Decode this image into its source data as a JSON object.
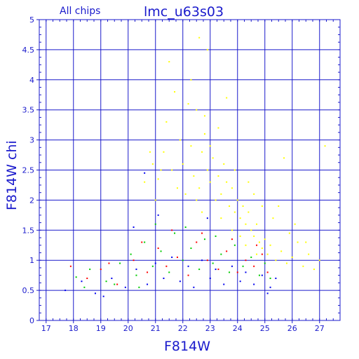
{
  "chart_data": {
    "type": "scatter",
    "header_left": "All chips",
    "title": "lmc_u63s03",
    "xlabel": "F814W",
    "ylabel": "F814W chi",
    "xlim": [
      16.75,
      27.75
    ],
    "ylim": [
      0,
      5
    ],
    "x_ticks": [
      "17",
      "18",
      "19",
      "20",
      "21",
      "22",
      "23",
      "24",
      "25",
      "26",
      "27"
    ],
    "y_ticks": [
      "0",
      "0.5",
      "1",
      "1.5",
      "2",
      "2.5",
      "3",
      "3.5",
      "4",
      "4.5",
      "5"
    ],
    "grid": true,
    "series": [
      {
        "color": "#ffff00",
        "points": [
          [
            20.9,
            2.6
          ],
          [
            21.1,
            2.35
          ],
          [
            21.3,
            2.8
          ],
          [
            21.4,
            3.3
          ],
          [
            21.6,
            2.5
          ],
          [
            21.8,
            2.2
          ],
          [
            21.9,
            3.0
          ],
          [
            22.0,
            2.6
          ],
          [
            22.1,
            2.1
          ],
          [
            22.2,
            3.6
          ],
          [
            22.3,
            2.9
          ],
          [
            22.4,
            2.4
          ],
          [
            22.5,
            3.5
          ],
          [
            22.6,
            2.2
          ],
          [
            22.7,
            2.8
          ],
          [
            22.8,
            3.1
          ],
          [
            22.9,
            2.5
          ],
          [
            23.0,
            2.3
          ],
          [
            23.1,
            2.7
          ],
          [
            23.2,
            2.0
          ],
          [
            23.3,
            2.4
          ],
          [
            23.4,
            2.1
          ],
          [
            23.5,
            2.6
          ],
          [
            23.6,
            2.3
          ],
          [
            23.7,
            1.9
          ],
          [
            23.8,
            2.2
          ],
          [
            23.9,
            1.8
          ],
          [
            24.0,
            2.0
          ],
          [
            24.1,
            1.7
          ],
          [
            24.2,
            1.9
          ],
          [
            24.3,
            1.6
          ],
          [
            24.4,
            1.8
          ],
          [
            24.5,
            1.5
          ],
          [
            24.6,
            1.4
          ],
          [
            24.7,
            1.6
          ],
          [
            24.8,
            1.3
          ],
          [
            24.9,
            1.2
          ],
          [
            25.0,
            1.35
          ],
          [
            25.1,
            1.1
          ],
          [
            25.2,
            1.25
          ],
          [
            25.4,
            1.0
          ],
          [
            25.6,
            1.15
          ],
          [
            25.8,
            0.95
          ],
          [
            26.0,
            1.05
          ],
          [
            26.2,
            1.3
          ],
          [
            26.4,
            0.9
          ],
          [
            26.6,
            1.1
          ],
          [
            26.8,
            0.85
          ],
          [
            27.0,
            1.0
          ],
          [
            27.2,
            2.9
          ],
          [
            22.6,
            4.7
          ],
          [
            22.9,
            4.5
          ],
          [
            22.3,
            4.0
          ],
          [
            21.5,
            4.3
          ],
          [
            23.6,
            3.7
          ],
          [
            21.7,
            3.8
          ],
          [
            22.8,
            3.4
          ],
          [
            23.3,
            3.2
          ],
          [
            20.8,
            2.8
          ],
          [
            21.2,
            2.5
          ],
          [
            23.9,
            2.5
          ],
          [
            24.6,
            2.1
          ],
          [
            24.9,
            1.9
          ],
          [
            25.3,
            1.7
          ],
          [
            25.9,
            1.45
          ],
          [
            26.5,
            1.3
          ],
          [
            22.7,
            1.8
          ],
          [
            23.8,
            1.5
          ],
          [
            24.3,
            1.25
          ],
          [
            24.7,
            1.1
          ],
          [
            24.1,
            1.4
          ],
          [
            23.4,
            1.7
          ],
          [
            22.5,
            2.0
          ],
          [
            25.7,
            2.7
          ],
          [
            26.1,
            1.6
          ],
          [
            25.5,
            1.9
          ],
          [
            24.4,
            2.3
          ],
          [
            23.0,
            2.9
          ],
          [
            21.0,
            2.0
          ],
          [
            20.6,
            2.3
          ]
        ]
      },
      {
        "color": "#00cc00",
        "points": [
          [
            18.1,
            0.72
          ],
          [
            18.6,
            0.85
          ],
          [
            19.2,
            0.65
          ],
          [
            19.7,
            0.95
          ],
          [
            20.1,
            1.1
          ],
          [
            20.3,
            0.75
          ],
          [
            20.6,
            1.3
          ],
          [
            20.9,
            0.9
          ],
          [
            21.2,
            1.15
          ],
          [
            21.5,
            0.8
          ],
          [
            21.7,
            1.45
          ],
          [
            22.0,
            1.0
          ],
          [
            22.3,
            1.2
          ],
          [
            22.6,
            0.85
          ],
          [
            22.8,
            1.35
          ],
          [
            23.1,
            0.95
          ],
          [
            23.4,
            1.1
          ],
          [
            23.7,
            0.8
          ],
          [
            23.9,
            1.25
          ],
          [
            24.2,
            0.9
          ],
          [
            24.5,
            1.05
          ],
          [
            24.8,
            0.75
          ],
          [
            25.0,
            0.95
          ],
          [
            25.2,
            0.7
          ],
          [
            21.0,
            1.6
          ],
          [
            22.1,
            1.55
          ],
          [
            23.2,
            1.4
          ],
          [
            20.4,
            0.55
          ],
          [
            19.5,
            0.6
          ],
          [
            18.4,
            0.55
          ]
        ]
      },
      {
        "color": "#ff0000",
        "points": [
          [
            17.9,
            0.9
          ],
          [
            18.5,
            0.7
          ],
          [
            19.0,
            0.85
          ],
          [
            19.6,
            0.6
          ],
          [
            20.2,
            1.0
          ],
          [
            20.7,
            0.8
          ],
          [
            21.1,
            1.2
          ],
          [
            21.4,
            0.9
          ],
          [
            21.8,
            1.05
          ],
          [
            22.2,
            0.75
          ],
          [
            22.5,
            1.3
          ],
          [
            22.9,
            1.0
          ],
          [
            23.3,
            0.85
          ],
          [
            23.6,
            1.15
          ],
          [
            24.0,
            0.8
          ],
          [
            24.3,
            1.0
          ],
          [
            24.6,
            0.9
          ],
          [
            24.9,
            1.1
          ],
          [
            25.1,
            0.8
          ],
          [
            21.6,
            1.5
          ],
          [
            22.7,
            1.45
          ],
          [
            20.5,
            1.3
          ],
          [
            23.8,
            1.35
          ],
          [
            24.7,
            1.25
          ],
          [
            19.3,
            0.95
          ]
        ]
      },
      {
        "color": "#0000ee",
        "points": [
          [
            17.7,
            0.5
          ],
          [
            18.3,
            0.65
          ],
          [
            18.8,
            0.45
          ],
          [
            19.4,
            0.7
          ],
          [
            19.9,
            0.55
          ],
          [
            20.3,
            0.85
          ],
          [
            20.7,
            0.6
          ],
          [
            21.0,
            0.95
          ],
          [
            21.3,
            0.7
          ],
          [
            21.6,
            1.05
          ],
          [
            21.9,
            0.65
          ],
          [
            22.2,
            0.9
          ],
          [
            22.4,
            0.55
          ],
          [
            22.7,
            1.0
          ],
          [
            23.0,
            0.7
          ],
          [
            23.2,
            0.85
          ],
          [
            23.5,
            0.6
          ],
          [
            23.8,
            0.9
          ],
          [
            24.1,
            0.65
          ],
          [
            24.3,
            0.8
          ],
          [
            24.6,
            0.6
          ],
          [
            24.9,
            0.75
          ],
          [
            25.2,
            0.55
          ],
          [
            25.4,
            0.7
          ],
          [
            20.2,
            1.55
          ],
          [
            21.1,
            1.75
          ],
          [
            22.9,
            1.7
          ],
          [
            20.6,
            2.45
          ],
          [
            19.1,
            0.4
          ],
          [
            25.1,
            0.45
          ]
        ]
      }
    ]
  }
}
